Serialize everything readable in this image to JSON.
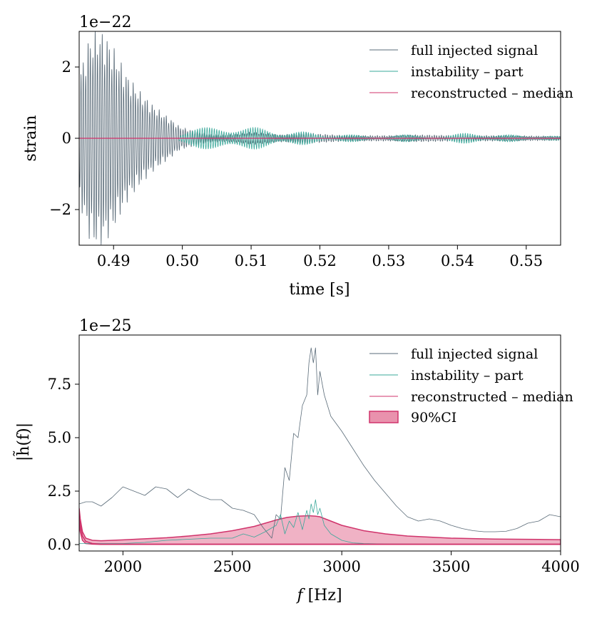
{
  "colors": {
    "full": "#5a6b78",
    "instability": "#3aa89a",
    "median": "#d0336b",
    "ci_fill": "#e992ad",
    "ci_edge": "#d0336b"
  },
  "chart_data": [
    {
      "type": "line",
      "title": "",
      "xlabel": "time [s]",
      "ylabel": "strain",
      "offset_text": "1e−22",
      "xlim": [
        0.485,
        0.555
      ],
      "ylim": [
        -3,
        3
      ],
      "xticks": [
        0.49,
        0.5,
        0.51,
        0.52,
        0.53,
        0.54,
        0.55
      ],
      "xtick_labels": [
        "0.49",
        "0.50",
        "0.51",
        "0.52",
        "0.53",
        "0.54",
        "0.55"
      ],
      "yticks": [
        -2,
        0,
        2
      ],
      "ytick_labels": [
        "−2",
        "0",
        "2"
      ],
      "legend_position": "top-right",
      "series": [
        {
          "name": "full injected signal",
          "color_key": "full",
          "model": "damped_oscillation",
          "carrier_hz": 2900,
          "envelope_t": [
            0.485,
            0.4865,
            0.4878,
            0.489,
            0.4905,
            0.492,
            0.494,
            0.496,
            0.498,
            0.4995,
            0.5,
            0.502,
            0.504,
            0.506,
            0.508,
            0.51,
            0.512,
            0.514,
            0.516,
            0.518,
            0.52,
            0.524,
            0.53,
            0.534,
            0.54,
            0.546,
            0.555
          ],
          "envelope_a": [
            1.8,
            2.9,
            3.1,
            2.9,
            2.4,
            1.8,
            1.3,
            0.9,
            0.6,
            0.35,
            0.3,
            0.2,
            0.12,
            0.1,
            0.12,
            0.18,
            0.15,
            0.1,
            0.12,
            0.16,
            0.12,
            0.08,
            0.08,
            0.1,
            0.08,
            0.08,
            0.06
          ]
        },
        {
          "name": "instability – part",
          "color_key": "instability",
          "model": "beating_oscillation",
          "carrier_hz": 2850,
          "start": 0.4995,
          "packets": [
            {
              "center": 0.5035,
              "width": 0.0032,
              "amp": 0.3
            },
            {
              "center": 0.5105,
              "width": 0.0028,
              "amp": 0.3
            },
            {
              "center": 0.5175,
              "width": 0.0025,
              "amp": 0.18
            },
            {
              "center": 0.5245,
              "width": 0.0025,
              "amp": 0.1
            },
            {
              "center": 0.5325,
              "width": 0.0023,
              "amp": 0.1
            },
            {
              "center": 0.541,
              "width": 0.0025,
              "amp": 0.14
            },
            {
              "center": 0.5475,
              "width": 0.0024,
              "amp": 0.1
            },
            {
              "center": 0.554,
              "width": 0.0025,
              "amp": 0.06
            }
          ]
        },
        {
          "name": "reconstructed – median",
          "color_key": "median",
          "model": "constant",
          "value": 0
        }
      ]
    },
    {
      "type": "line",
      "title": "",
      "xlabel": "f [Hz]",
      "xlabel_italic": "f",
      "xlabel_rest": " [Hz]",
      "ylabel": "|h̃(f)|",
      "offset_text": "1e−25",
      "xlim": [
        1800,
        4000
      ],
      "ylim": [
        -0.3,
        9.8
      ],
      "xticks": [
        2000,
        2500,
        3000,
        3500,
        4000
      ],
      "xtick_labels": [
        "2000",
        "2500",
        "3000",
        "3500",
        "4000"
      ],
      "yticks": [
        0.0,
        2.5,
        5.0,
        7.5
      ],
      "ytick_labels": [
        "0.0",
        "2.5",
        "5.0",
        "7.5"
      ],
      "legend_position": "top-right",
      "series": [
        {
          "name": "full injected signal",
          "color_key": "full",
          "x": [
            1800,
            1830,
            1860,
            1900,
            1950,
            2000,
            2050,
            2100,
            2150,
            2200,
            2250,
            2300,
            2350,
            2400,
            2450,
            2500,
            2550,
            2600,
            2640,
            2680,
            2700,
            2720,
            2740,
            2760,
            2780,
            2800,
            2820,
            2840,
            2850,
            2860,
            2870,
            2880,
            2890,
            2900,
            2920,
            2950,
            3000,
            3050,
            3100,
            3150,
            3200,
            3250,
            3300,
            3350,
            3400,
            3450,
            3500,
            3550,
            3600,
            3650,
            3700,
            3750,
            3800,
            3850,
            3900,
            3950,
            4000
          ],
          "y": [
            1.9,
            2.0,
            2.0,
            1.8,
            2.2,
            2.7,
            2.5,
            2.3,
            2.7,
            2.6,
            2.2,
            2.6,
            2.3,
            2.1,
            2.1,
            1.7,
            1.6,
            1.4,
            0.8,
            0.3,
            1.4,
            1.2,
            3.6,
            3.0,
            5.2,
            5.0,
            6.5,
            7.0,
            8.5,
            9.2,
            8.5,
            9.2,
            7.0,
            8.1,
            7.0,
            6.0,
            5.3,
            4.5,
            3.7,
            3.0,
            2.4,
            1.8,
            1.3,
            1.1,
            1.2,
            1.1,
            0.9,
            0.75,
            0.65,
            0.6,
            0.6,
            0.62,
            0.75,
            1.0,
            1.1,
            1.4,
            1.3
          ]
        },
        {
          "name": "instability – part",
          "color_key": "instability",
          "x": [
            1800,
            1900,
            2000,
            2100,
            2200,
            2300,
            2400,
            2500,
            2550,
            2600,
            2650,
            2700,
            2720,
            2740,
            2760,
            2780,
            2800,
            2820,
            2840,
            2850,
            2860,
            2870,
            2880,
            2890,
            2900,
            2920,
            2950,
            3000,
            3050,
            3100,
            3200,
            3400,
            3600,
            3800,
            4000
          ],
          "y": [
            0.05,
            0.05,
            0.05,
            0.1,
            0.2,
            0.25,
            0.3,
            0.3,
            0.5,
            0.35,
            0.6,
            0.9,
            1.4,
            0.5,
            1.1,
            0.8,
            1.5,
            0.7,
            1.6,
            1.2,
            1.9,
            1.5,
            2.1,
            1.4,
            1.7,
            0.9,
            0.5,
            0.2,
            0.08,
            0.05,
            0.03,
            0.02,
            0.02,
            0.02,
            0.02
          ]
        },
        {
          "name": "reconstructed – median",
          "color_key": "median",
          "x": [
            1800,
            1805,
            1815,
            1830,
            1860,
            1900,
            2000,
            2200,
            2400,
            2600,
            2800,
            3000,
            3200,
            3500,
            3800,
            4000
          ],
          "y": [
            1.4,
            0.9,
            0.4,
            0.15,
            0.05,
            0.02,
            0.02,
            0.02,
            0.02,
            0.02,
            0.02,
            0.02,
            0.02,
            0.02,
            0.02,
            0.02
          ]
        },
        {
          "name": "90%CI",
          "color_key": "ci_fill",
          "type": "band",
          "x": [
            1800,
            1805,
            1815,
            1830,
            1860,
            1900,
            2000,
            2100,
            2200,
            2300,
            2400,
            2500,
            2600,
            2650,
            2700,
            2750,
            2800,
            2850,
            2880,
            2900,
            2950,
            3000,
            3100,
            3200,
            3300,
            3400,
            3500,
            3600,
            3700,
            3800,
            3900,
            4000
          ],
          "upper": [
            1.7,
            1.2,
            0.6,
            0.3,
            0.2,
            0.18,
            0.22,
            0.27,
            0.32,
            0.4,
            0.5,
            0.65,
            0.85,
            1.0,
            1.15,
            1.27,
            1.33,
            1.35,
            1.33,
            1.3,
            1.1,
            0.9,
            0.65,
            0.5,
            0.4,
            0.35,
            0.3,
            0.28,
            0.26,
            0.25,
            0.24,
            0.23
          ],
          "lower": [
            1.0,
            0.6,
            0.2,
            0.05,
            0.02,
            0.01,
            0.01,
            0.01,
            0.01,
            0.01,
            0.01,
            0.01,
            0.01,
            0.01,
            0.01,
            0.01,
            0.01,
            0.01,
            0.01,
            0.01,
            0.01,
            0.01,
            0.01,
            0.01,
            0.01,
            0.01,
            0.01,
            0.01,
            0.01,
            0.01,
            0.01,
            0.01
          ]
        }
      ]
    }
  ]
}
